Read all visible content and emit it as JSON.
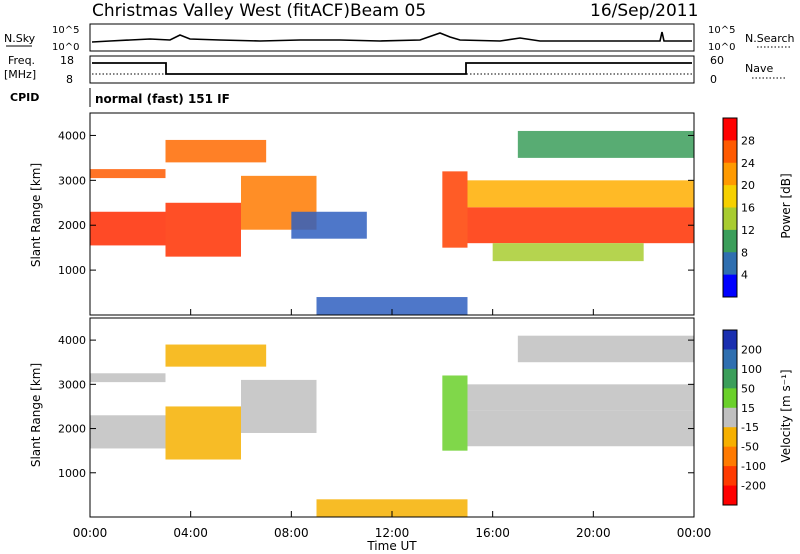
{
  "header": {
    "station": "Christmas Valley West (fitACF)",
    "beam": "Beam 05",
    "date": "16/Sep/2011"
  },
  "top_panels": {
    "nsky_label": "N.Sky",
    "nsky_ticks": [
      "10^5",
      "10^0"
    ],
    "nsearch_label": "N.Search",
    "nsearch_ticks": [
      "10^5",
      "10^0"
    ],
    "freq_label": "Freq.",
    "freq_unit": "[MHz]",
    "freq_ticks": [
      "18",
      "8"
    ],
    "nave_label": "Nave",
    "nave_ticks": [
      "60",
      "0"
    ],
    "cpid_label": "CPID",
    "cpid_value": "normal (fast) 151 IF"
  },
  "chart_data": [
    {
      "type": "heatmap",
      "panel": "power",
      "ylabel": "Slant Range [km]",
      "yticks": [
        1000,
        2000,
        3000,
        4000
      ],
      "ylim": [
        0,
        4500
      ],
      "xlim": [
        0,
        24
      ],
      "colorbar_label": "Power [dB]",
      "colorbar_ticks": [
        "28",
        "24",
        "20",
        "16",
        "12",
        "8",
        "4"
      ],
      "colorbar_colors": [
        "#ff0000",
        "#ff5a00",
        "#ff9a00",
        "#f6d000",
        "#a8cc30",
        "#3b9e5a",
        "#2f6fb0",
        "#0000ff"
      ],
      "bands": [
        {
          "t0": 0.0,
          "t1": 3.0,
          "r0": 3050,
          "r1": 3250,
          "color": "#ff5a00"
        },
        {
          "t0": 0.0,
          "t1": 3.0,
          "r0": 1550,
          "r1": 2300,
          "color": "#ff2a00"
        },
        {
          "t0": 3.0,
          "t1": 7.0,
          "r0": 3400,
          "r1": 3900,
          "color": "#ff6a00"
        },
        {
          "t0": 3.0,
          "t1": 6.0,
          "r0": 1300,
          "r1": 2500,
          "color": "#ff3000"
        },
        {
          "t0": 6.0,
          "t1": 9.0,
          "r0": 1900,
          "r1": 3100,
          "color": "#ff7a00"
        },
        {
          "t0": 8.0,
          "t1": 11.0,
          "r0": 1700,
          "r1": 2300,
          "color": "#2f5fc0"
        },
        {
          "t0": 9.0,
          "t1": 15.0,
          "r0": 0,
          "r1": 400,
          "color": "#2f5fc0"
        },
        {
          "t0": 14.0,
          "t1": 15.0,
          "r0": 1500,
          "r1": 3200,
          "color": "#ff4000"
        },
        {
          "t0": 15.0,
          "t1": 24.0,
          "r0": 1600,
          "r1": 2400,
          "color": "#ff3000"
        },
        {
          "t0": 15.0,
          "t1": 24.0,
          "r0": 2400,
          "r1": 3000,
          "color": "#ffae00"
        },
        {
          "t0": 16.0,
          "t1": 22.0,
          "r0": 1200,
          "r1": 1600,
          "color": "#a8cc30"
        },
        {
          "t0": 17.0,
          "t1": 24.0,
          "r0": 3500,
          "r1": 4100,
          "color": "#3b9e5a"
        }
      ]
    },
    {
      "type": "heatmap",
      "panel": "velocity",
      "ylabel": "Slant Range [km]",
      "xlabel": "Time UT",
      "xticks": [
        "00:00",
        "04:00",
        "08:00",
        "12:00",
        "16:00",
        "20:00",
        "00:00"
      ],
      "yticks": [
        1000,
        2000,
        3000,
        4000
      ],
      "ylim": [
        0,
        4500
      ],
      "xlim": [
        0,
        24
      ],
      "colorbar_label": "Velocity [m s⁻¹]",
      "colorbar_ticks": [
        "200",
        "100",
        "50",
        "15",
        "-15",
        "-50",
        "-100",
        "-200"
      ],
      "colorbar_colors": [
        "#1a2fb0",
        "#2f6fb0",
        "#3b9e5a",
        "#6ad02a",
        "#c0c0c0",
        "#f6b000",
        "#ff7a00",
        "#ff3a00",
        "#ff0000"
      ],
      "bands": [
        {
          "t0": 0.0,
          "t1": 3.0,
          "r0": 3050,
          "r1": 3250,
          "color": "#c0c0c0"
        },
        {
          "t0": 0.0,
          "t1": 3.0,
          "r0": 1550,
          "r1": 2300,
          "color": "#c0c0c0"
        },
        {
          "t0": 3.0,
          "t1": 7.0,
          "r0": 3400,
          "r1": 3900,
          "color": "#f6b000"
        },
        {
          "t0": 3.0,
          "t1": 6.0,
          "r0": 1300,
          "r1": 2500,
          "color": "#f6b000"
        },
        {
          "t0": 6.0,
          "t1": 9.0,
          "r0": 1900,
          "r1": 3100,
          "color": "#c0c0c0"
        },
        {
          "t0": 9.0,
          "t1": 15.0,
          "r0": 0,
          "r1": 400,
          "color": "#f6b000"
        },
        {
          "t0": 14.0,
          "t1": 15.0,
          "r0": 1500,
          "r1": 3200,
          "color": "#6ad02a"
        },
        {
          "t0": 15.0,
          "t1": 24.0,
          "r0": 1600,
          "r1": 2400,
          "color": "#c0c0c0"
        },
        {
          "t0": 15.0,
          "t1": 24.0,
          "r0": 2400,
          "r1": 3000,
          "color": "#c0c0c0"
        },
        {
          "t0": 17.0,
          "t1": 24.0,
          "r0": 3500,
          "r1": 4100,
          "color": "#c0c0c0"
        }
      ]
    }
  ]
}
